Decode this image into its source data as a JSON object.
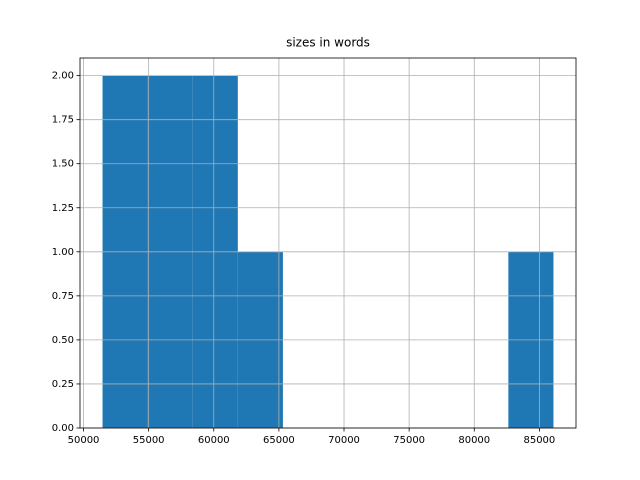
{
  "chart_data": {
    "type": "histogram",
    "title": "sizes in words",
    "bins": [
      51460,
      54922,
      58384,
      61846,
      65308,
      68770,
      72232,
      75694,
      79156,
      82618,
      86080
    ],
    "values": [
      2,
      2,
      2,
      1,
      0,
      0,
      0,
      0,
      0,
      1
    ],
    "color": "#1f77b4",
    "xlim": [
      49729,
      87811
    ],
    "xticks": [
      50000,
      55000,
      60000,
      65000,
      70000,
      75000,
      80000,
      85000
    ],
    "ylim": [
      0,
      2.1
    ],
    "yticks": [
      {
        "value": 0,
        "label": "0.00"
      },
      {
        "value": 0.25,
        "label": "0.25"
      },
      {
        "value": 0.5,
        "label": "0.50"
      },
      {
        "value": 0.75,
        "label": "0.75"
      },
      {
        "value": 1,
        "label": "1.00"
      },
      {
        "value": 1.25,
        "label": "1.25"
      },
      {
        "value": 1.5,
        "label": "1.50"
      },
      {
        "value": 1.75,
        "label": "1.75"
      },
      {
        "value": 2,
        "label": "2.00"
      }
    ],
    "grid": true
  }
}
